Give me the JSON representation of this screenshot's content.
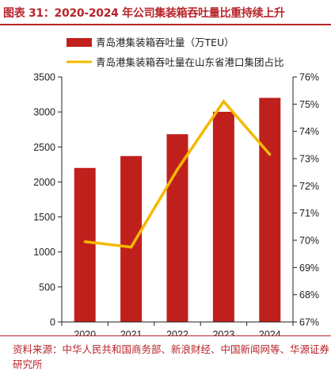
{
  "title": "图表 31：2020-2024 年公司集装箱吞吐量比重持续上升",
  "source": "资料来源：中华人民共和国商务部、新浪财经、中国新闻网等、华源证券研究所",
  "chart_data": {
    "type": "bar",
    "categories": [
      "2020",
      "2021",
      "2022",
      "2023",
      "2024"
    ],
    "series": [
      {
        "name": "青岛港集装箱吞吐量（万TEU）",
        "type": "bar",
        "axis": "left",
        "color": "#c0201c",
        "values": [
          2200,
          2370,
          2682,
          3002,
          3201
        ]
      },
      {
        "name": "青岛港集装箱吞吐量在山东省港口集团占比",
        "type": "line",
        "axis": "right",
        "color": "#f5b800",
        "values": [
          69.95,
          69.75,
          72.6,
          75.1,
          73.15
        ]
      }
    ],
    "y_left": {
      "ylim": [
        0,
        3500
      ],
      "ticks": [
        "0",
        "500",
        "1000",
        "1500",
        "2000",
        "2500",
        "3000",
        "3500"
      ]
    },
    "y_right": {
      "ylim": [
        67,
        76
      ],
      "ticks": [
        "67%",
        "68%",
        "69%",
        "70%",
        "71%",
        "72%",
        "73%",
        "74%",
        "75%",
        "76%"
      ]
    },
    "legend_position": "top",
    "grid": false
  }
}
